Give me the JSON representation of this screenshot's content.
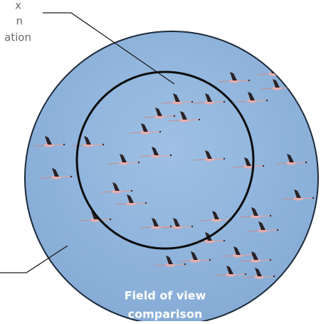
{
  "callout_text": [
    "x",
    "n",
    "ation"
  ],
  "label": {
    "line1": "Field of view",
    "line2": "comparison"
  }
}
